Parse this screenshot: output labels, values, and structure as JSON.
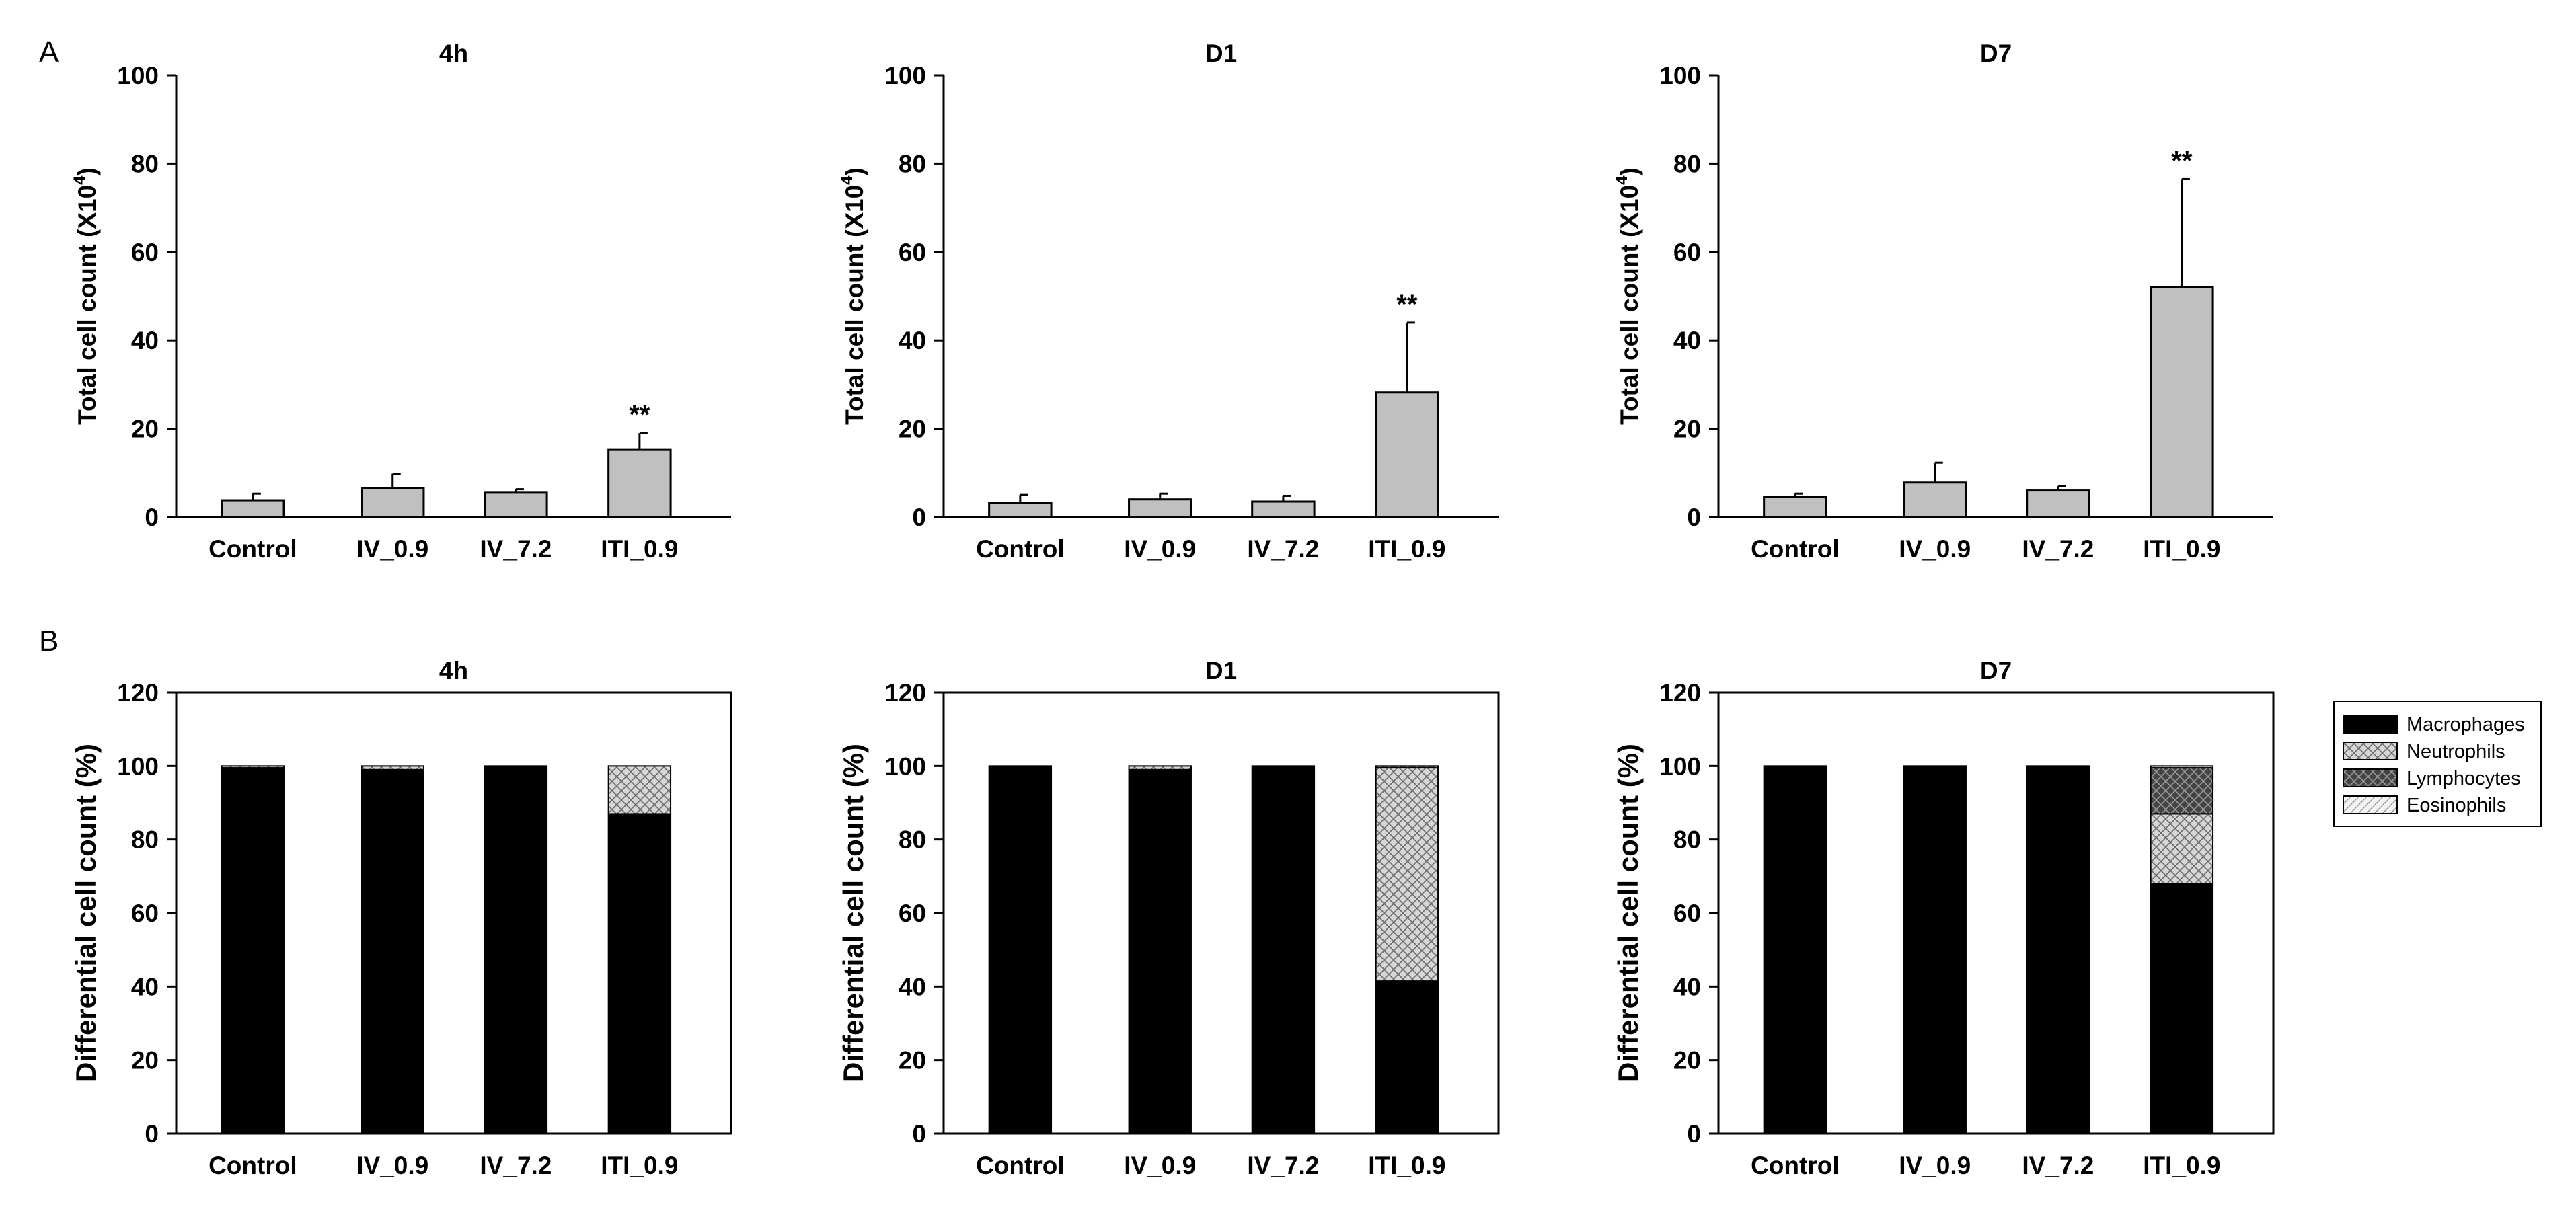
{
  "figure": {
    "panel_a_label": "A",
    "panel_b_label": "B",
    "total_ylabel_main": "Total cell count (X10",
    "total_ylabel_sup": "4",
    "total_ylabel_end": ")",
    "diff_ylabel": "Differential cell count (%)"
  },
  "colors": {
    "bar_gray": "#c0c0c0",
    "macrophages": "#000000",
    "neutrophils": "#d2d2d2",
    "lymphocytes": "#5a5a5a",
    "eosinophils": "#ececec"
  },
  "chart_data": [
    {
      "type": "bar",
      "title": "4h",
      "ylabel": "Total cell count (X10^4)",
      "ylim": [
        0,
        100
      ],
      "yticks": [
        "0",
        "20",
        "40",
        "60",
        "80",
        "100"
      ],
      "categories": [
        "Control",
        "IV_0.9",
        "IV_7.2",
        "ITI_0.9"
      ],
      "values": [
        3.8,
        6.5,
        5.5,
        15.2
      ],
      "errors": [
        1.5,
        3.3,
        0.8,
        3.8
      ],
      "annotations": [
        "",
        "",
        "",
        "**"
      ]
    },
    {
      "type": "bar",
      "title": "D1",
      "ylabel": "Total cell count (X10^4)",
      "ylim": [
        0,
        100
      ],
      "yticks": [
        "0",
        "20",
        "40",
        "60",
        "80",
        "100"
      ],
      "categories": [
        "Control",
        "IV_0.9",
        "IV_7.2",
        "ITI_0.9"
      ],
      "values": [
        3.2,
        4.0,
        3.5,
        28.2
      ],
      "errors": [
        1.8,
        1.3,
        1.3,
        15.8
      ],
      "annotations": [
        "",
        "",
        "",
        "**"
      ]
    },
    {
      "type": "bar",
      "title": "D7",
      "ylabel": "Total cell count (X10^4)",
      "ylim": [
        0,
        100
      ],
      "yticks": [
        "0",
        "20",
        "40",
        "60",
        "80",
        "100"
      ],
      "categories": [
        "Control",
        "IV_0.9",
        "IV_7.2",
        "ITI_0.9"
      ],
      "values": [
        4.5,
        7.8,
        6.0,
        52.0
      ],
      "errors": [
        0.8,
        4.5,
        1.0,
        24.5
      ],
      "annotations": [
        "",
        "",
        "",
        "**"
      ]
    },
    {
      "type": "bar",
      "stacked": true,
      "title": "4h",
      "ylabel": "Differential cell count (%)",
      "ylim": [
        0,
        120
      ],
      "yticks": [
        "0",
        "20",
        "40",
        "60",
        "80",
        "100",
        "120"
      ],
      "categories": [
        "Control",
        "IV_0.9",
        "IV_7.2",
        "ITI_0.9"
      ],
      "series": [
        {
          "name": "Macrophages",
          "values": [
            99.5,
            99.0,
            100,
            87.0
          ]
        },
        {
          "name": "Neutrophils",
          "values": [
            0.5,
            1.0,
            0,
            13.0
          ]
        },
        {
          "name": "Lymphocytes",
          "values": [
            0,
            0,
            0,
            0
          ]
        },
        {
          "name": "Eosinophils",
          "values": [
            0,
            0,
            0,
            0
          ]
        }
      ]
    },
    {
      "type": "bar",
      "stacked": true,
      "title": "D1",
      "ylabel": "Differential cell count (%)",
      "ylim": [
        0,
        120
      ],
      "yticks": [
        "0",
        "20",
        "40",
        "60",
        "80",
        "100",
        "120"
      ],
      "categories": [
        "Control",
        "IV_0.9",
        "IV_7.2",
        "ITI_0.9"
      ],
      "series": [
        {
          "name": "Macrophages",
          "values": [
            100,
            99.0,
            100,
            41.5
          ]
        },
        {
          "name": "Neutrophils",
          "values": [
            0,
            1.0,
            0,
            58.0
          ]
        },
        {
          "name": "Lymphocytes",
          "values": [
            0,
            0,
            0,
            0.5
          ]
        },
        {
          "name": "Eosinophils",
          "values": [
            0,
            0,
            0,
            0
          ]
        }
      ]
    },
    {
      "type": "bar",
      "stacked": true,
      "title": "D7",
      "ylabel": "Differential cell count (%)",
      "ylim": [
        0,
        120
      ],
      "yticks": [
        "0",
        "20",
        "40",
        "60",
        "80",
        "100",
        "120"
      ],
      "categories": [
        "Control",
        "IV_0.9",
        "IV_7.2",
        "ITI_0.9"
      ],
      "series": [
        {
          "name": "Macrophages",
          "values": [
            100,
            100,
            100,
            68.0
          ]
        },
        {
          "name": "Neutrophils",
          "values": [
            0,
            0,
            0,
            19.0
          ]
        },
        {
          "name": "Lymphocytes",
          "values": [
            0,
            0,
            0,
            12.5
          ]
        },
        {
          "name": "Eosinophils",
          "values": [
            0,
            0,
            0,
            0.5
          ]
        }
      ],
      "legend": {
        "placement": "right",
        "entries": [
          "Macrophages",
          "Neutrophils",
          "Lymphocytes",
          "Eosinophils"
        ]
      }
    }
  ]
}
